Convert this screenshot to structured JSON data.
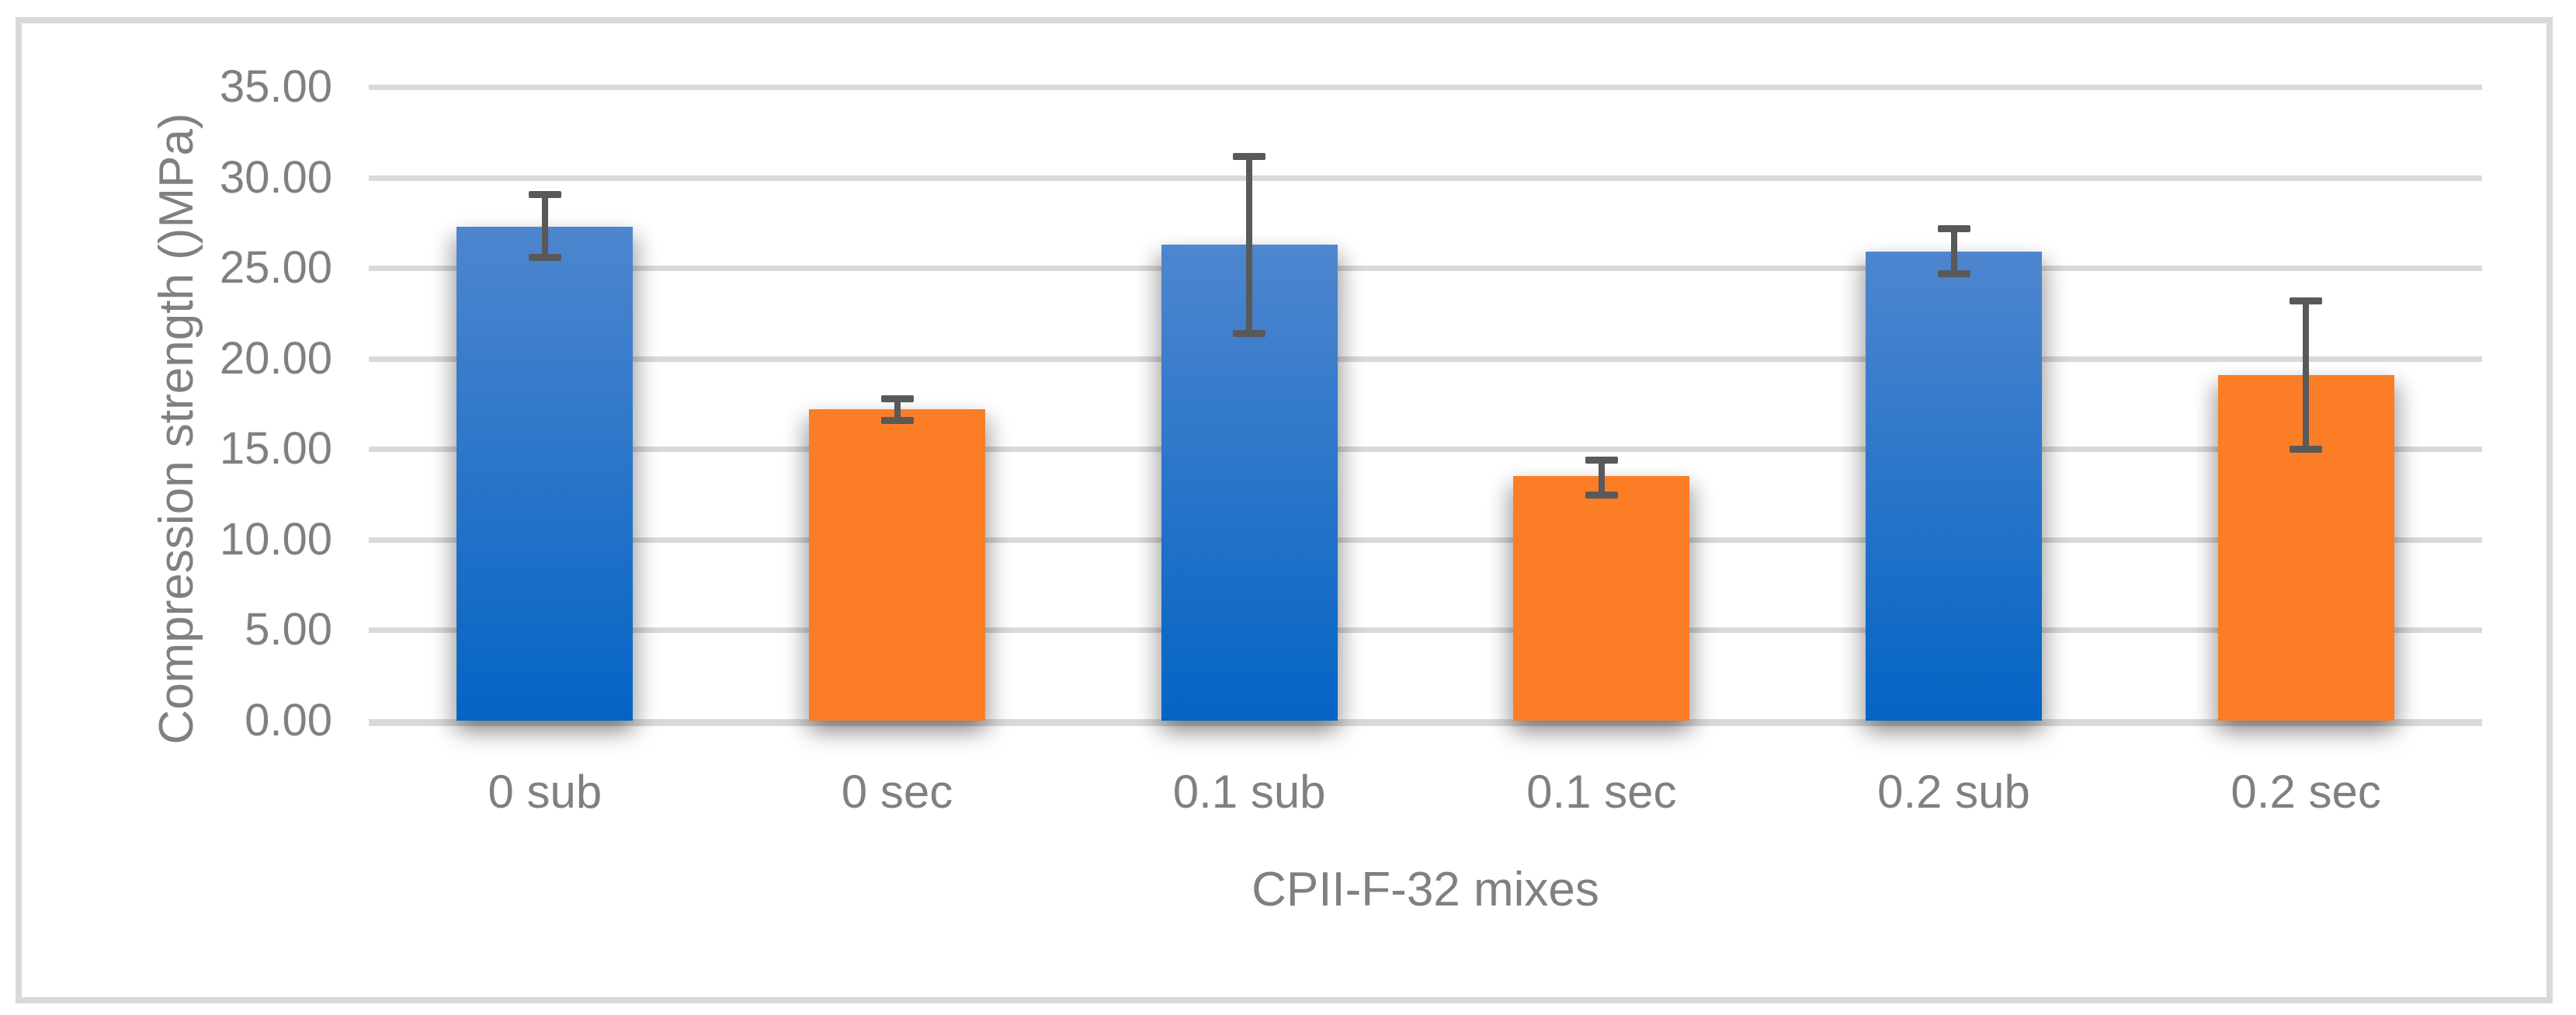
{
  "figure": {
    "background": "#FFFFFF",
    "frame_border_color": "#D9D9D9"
  },
  "chart_data": {
    "type": "bar",
    "title": "",
    "xlabel": "CPII-F-32 mixes",
    "ylabel": "Compression strength ()MPa)",
    "categories": [
      "0 sub",
      "0 sec",
      "0.1 sub",
      "0.1 sec",
      "0.2 sub",
      "0.2 sec"
    ],
    "values": [
      27.3,
      17.2,
      26.3,
      13.5,
      25.9,
      19.1
    ],
    "error_low": [
      25.6,
      16.6,
      21.4,
      12.5,
      24.7,
      15.0
    ],
    "error_high": [
      29.1,
      17.8,
      31.2,
      14.4,
      27.2,
      23.2
    ],
    "bar_series": [
      "sub",
      "sec",
      "sub",
      "sec",
      "sub",
      "sec"
    ],
    "legend": null,
    "grid": "horizontal",
    "ylim": [
      0,
      35
    ],
    "ytick_step": 5,
    "ytick_values": [
      35,
      30,
      25,
      20,
      15,
      10,
      5,
      0
    ],
    "ytick_labels": [
      "35.00",
      "30.00",
      "25.00",
      "20.00",
      "15.00",
      "10.00",
      "5.00",
      "0.00"
    ],
    "colors": {
      "sub_bar_top": "#4E86CF",
      "sub_bar_bottom": "#0464C4",
      "sec_bar": "#FB7D26",
      "error_bar": "#595959",
      "gridline": "#D9D9D9",
      "text": "#808080"
    }
  }
}
